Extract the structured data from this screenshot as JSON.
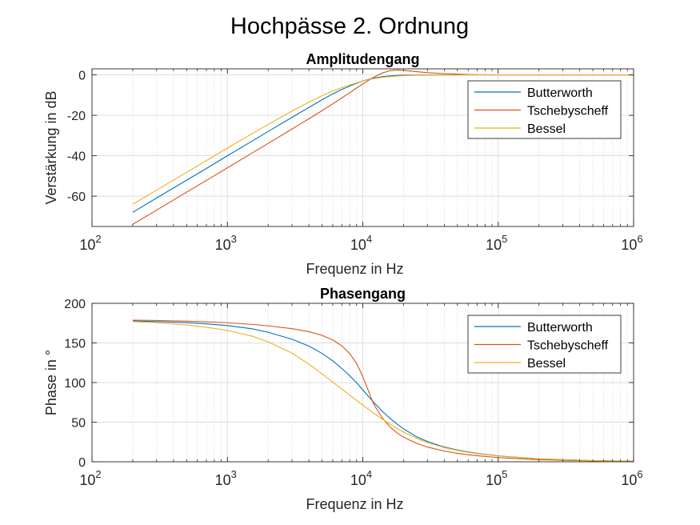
{
  "figure": {
    "title": "Hochpässe 2. Ordnung"
  },
  "chart_data": [
    {
      "type": "line",
      "title": "Amplitudengang",
      "xlabel": "Frequenz in Hz",
      "ylabel": "Verstärkung in dB",
      "xscale": "log",
      "xlim": [
        100,
        1000000
      ],
      "ylim": [
        -75,
        3
      ],
      "xticks": [
        100,
        1000,
        10000,
        100000,
        1000000
      ],
      "xtick_labels": [
        {
          "base": "10",
          "exp": "2"
        },
        {
          "base": "10",
          "exp": "3"
        },
        {
          "base": "10",
          "exp": "4"
        },
        {
          "base": "10",
          "exp": "5"
        },
        {
          "base": "10",
          "exp": "6"
        }
      ],
      "yticks": [
        0,
        -20,
        -40,
        -60
      ],
      "ytick_labels": [
        "0",
        "-20",
        "-40",
        "-60"
      ],
      "grid": true,
      "legend": "top-right",
      "x": [
        200,
        300,
        500,
        700,
        1000,
        1500,
        2000,
        3000,
        4000,
        5000,
        6000,
        7000,
        8000,
        9000,
        10000,
        12000,
        14000,
        16000,
        18000,
        20000,
        25000,
        30000,
        40000,
        50000,
        60000,
        70000,
        100000,
        200000,
        500000,
        1000000
      ],
      "series": [
        {
          "name": "Butterworth",
          "color": "#0072BD",
          "values": [
            -68.0,
            -60.9,
            -52.1,
            -46.3,
            -40.0,
            -33.0,
            -28.0,
            -21.0,
            -16.1,
            -12.3,
            -9.4,
            -7.2,
            -5.5,
            -4.1,
            -3.0,
            -1.6,
            -0.9,
            -0.48,
            -0.27,
            -0.16,
            -0.07,
            -0.03,
            -0.01,
            0,
            0,
            0,
            0,
            0,
            0,
            0
          ]
        },
        {
          "name": "Tschebyscheff",
          "color": "#D95319",
          "values": [
            -73.9,
            -66.9,
            -58.0,
            -52.2,
            -46.0,
            -38.9,
            -33.9,
            -26.8,
            -21.7,
            -17.7,
            -14.3,
            -11.4,
            -8.8,
            -6.5,
            -4.5,
            -1.2,
            1.0,
            2.1,
            2.4,
            2.2,
            1.6,
            1.1,
            0.6,
            0.4,
            0.2,
            0.1,
            0,
            0,
            0,
            0
          ]
        },
        {
          "name": "Bessel",
          "color": "#EDB120",
          "values": [
            -64.0,
            -57.0,
            -48.2,
            -42.4,
            -36.2,
            -29.3,
            -24.5,
            -17.9,
            -13.5,
            -10.3,
            -8.0,
            -6.3,
            -5.0,
            -3.9,
            -3.0,
            -1.9,
            -1.2,
            -0.82,
            -0.56,
            -0.4,
            -0.2,
            -0.11,
            -0.04,
            -0.02,
            0,
            0,
            0,
            0,
            0,
            0
          ]
        }
      ]
    },
    {
      "type": "line",
      "title": "Phasengang",
      "xlabel": "Frequenz in Hz",
      "ylabel": "Phase in °",
      "xscale": "log",
      "xlim": [
        100,
        1000000
      ],
      "ylim": [
        0,
        200
      ],
      "xticks": [
        100,
        1000,
        10000,
        100000,
        1000000
      ],
      "xtick_labels": [
        {
          "base": "10",
          "exp": "2"
        },
        {
          "base": "10",
          "exp": "3"
        },
        {
          "base": "10",
          "exp": "4"
        },
        {
          "base": "10",
          "exp": "5"
        },
        {
          "base": "10",
          "exp": "6"
        }
      ],
      "yticks": [
        0,
        50,
        100,
        150,
        200
      ],
      "ytick_labels": [
        "0",
        "50",
        "100",
        "150",
        "200"
      ],
      "grid": true,
      "legend": "top-right",
      "x": [
        200,
        300,
        500,
        700,
        1000,
        1500,
        2000,
        3000,
        4000,
        5000,
        6000,
        7000,
        8000,
        9000,
        10000,
        12000,
        14000,
        16000,
        18000,
        20000,
        25000,
        30000,
        40000,
        50000,
        60000,
        70000,
        100000,
        200000,
        500000,
        1000000
      ],
      "series": [
        {
          "name": "Butterworth",
          "color": "#0072BD",
          "values": [
            177.7,
            177.0,
            175.6,
            174.1,
            171.9,
            168.0,
            163.5,
            154.7,
            146.0,
            136.8,
            127.3,
            117.8,
            108.6,
            99.9,
            90.7,
            75.3,
            63.4,
            54.3,
            47.3,
            41.6,
            31.6,
            25.6,
            18.6,
            14.9,
            12.4,
            10.6,
            7.4,
            3.7,
            1.5,
            0.75
          ]
        },
        {
          "name": "Tschebyscheff",
          "color": "#D95319",
          "values": [
            178.8,
            178.4,
            177.5,
            176.6,
            175.5,
            173.5,
            171.6,
            168.0,
            164.2,
            159.6,
            153.8,
            146.3,
            136.6,
            124.0,
            107.5,
            73.0,
            54.8,
            43.5,
            36.2,
            31.0,
            23.2,
            18.6,
            13.5,
            10.7,
            8.9,
            7.6,
            5.3,
            2.6,
            1.06,
            0.53
          ]
        },
        {
          "name": "Bessel",
          "color": "#EDB120",
          "values": [
            177.0,
            175.5,
            172.6,
            169.8,
            165.8,
            158.9,
            151.4,
            137.2,
            123.2,
            111.0,
            100.5,
            91.8,
            84.2,
            77.5,
            71.5,
            61.6,
            53.6,
            47.2,
            41.8,
            37.4,
            29.5,
            24.3,
            17.9,
            14.3,
            11.9,
            10.2,
            7.2,
            3.6,
            1.4,
            0.72
          ]
        }
      ]
    }
  ]
}
